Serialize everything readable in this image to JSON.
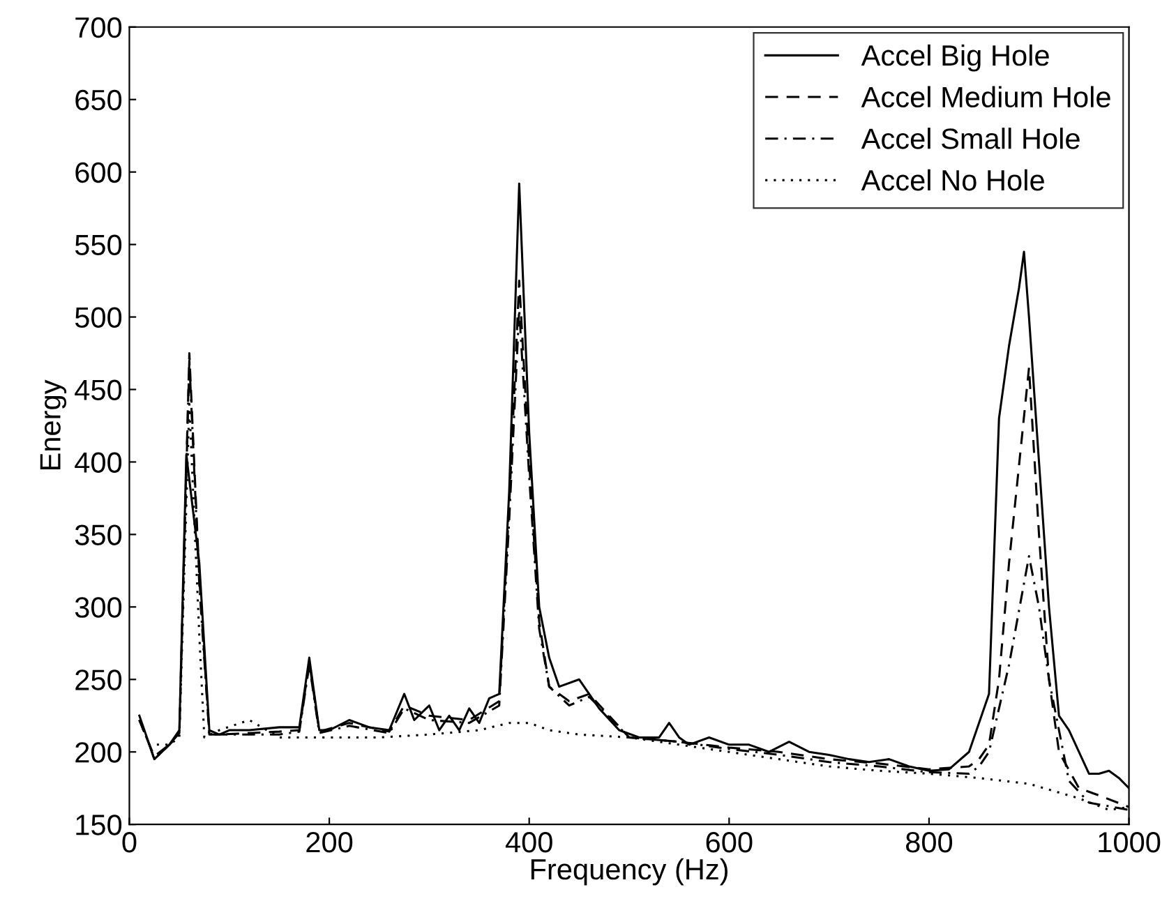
{
  "chart_data": {
    "type": "line",
    "xlabel": "Frequency (Hz)",
    "ylabel": "Energy",
    "xlim": [
      0,
      1000
    ],
    "ylim": [
      150,
      700
    ],
    "xticks": [
      0,
      200,
      400,
      600,
      800,
      1000
    ],
    "yticks": [
      150,
      200,
      250,
      300,
      350,
      400,
      450,
      500,
      550,
      600,
      650,
      700
    ],
    "grid": false,
    "legend": "top right",
    "marker": "none",
    "series": [
      {
        "name": "Accel Big Hole",
        "color": "#000000",
        "line_style": "solid",
        "x": [
          10,
          20,
          25,
          40,
          50,
          57,
          70,
          80,
          90,
          100,
          120,
          150,
          170,
          180,
          190,
          200,
          220,
          240,
          260,
          275,
          285,
          300,
          310,
          320,
          330,
          340,
          350,
          360,
          370,
          380,
          390,
          400,
          410,
          420,
          430,
          450,
          470,
          490,
          510,
          530,
          540,
          550,
          560,
          580,
          600,
          620,
          640,
          660,
          680,
          700,
          720,
          740,
          760,
          780,
          800,
          820,
          840,
          860,
          870,
          880,
          890,
          895,
          900,
          910,
          920,
          930,
          940,
          960,
          970,
          980,
          990,
          1000
        ],
        "values": [
          225,
          205,
          195,
          205,
          215,
          405,
          330,
          215,
          212,
          215,
          215,
          217,
          217,
          265,
          215,
          215,
          222,
          217,
          215,
          240,
          222,
          232,
          215,
          225,
          215,
          230,
          220,
          237,
          240,
          380,
          592,
          420,
          300,
          265,
          245,
          250,
          230,
          215,
          210,
          210,
          220,
          210,
          205,
          210,
          205,
          205,
          200,
          207,
          200,
          198,
          195,
          193,
          195,
          190,
          187,
          188,
          200,
          240,
          430,
          480,
          520,
          545,
          500,
          400,
          300,
          225,
          215,
          185,
          185,
          187,
          182,
          175
        ]
      },
      {
        "name": "Accel Medium Hole",
        "color": "#000000",
        "line_style": "dashed",
        "x": [
          10,
          20,
          25,
          40,
          50,
          60,
          70,
          80,
          90,
          120,
          150,
          170,
          180,
          190,
          220,
          260,
          275,
          300,
          340,
          370,
          380,
          390,
          400,
          410,
          420,
          440,
          460,
          500,
          550,
          600,
          650,
          700,
          750,
          800,
          840,
          850,
          860,
          870,
          880,
          900,
          910,
          920,
          930,
          950,
          970,
          1000
        ],
        "values": [
          222,
          205,
          197,
          205,
          213,
          475,
          320,
          212,
          212,
          213,
          214,
          215,
          262,
          214,
          220,
          214,
          232,
          225,
          222,
          235,
          370,
          525,
          400,
          290,
          245,
          235,
          240,
          210,
          207,
          203,
          200,
          195,
          192,
          188,
          190,
          195,
          205,
          250,
          330,
          465,
          350,
          250,
          200,
          175,
          170,
          162
        ]
      },
      {
        "name": "Accel Small Hole",
        "color": "#000000",
        "line_style": "dashdot",
        "x": [
          10,
          20,
          25,
          40,
          50,
          60,
          70,
          80,
          90,
          120,
          150,
          170,
          180,
          190,
          220,
          260,
          275,
          300,
          340,
          370,
          380,
          390,
          400,
          410,
          420,
          440,
          460,
          500,
          550,
          600,
          650,
          700,
          750,
          800,
          840,
          850,
          860,
          870,
          880,
          900,
          910,
          920,
          940,
          960,
          1000
        ],
        "values": [
          222,
          205,
          195,
          205,
          212,
          470,
          315,
          212,
          212,
          212,
          212,
          214,
          260,
          213,
          218,
          213,
          230,
          222,
          220,
          232,
          360,
          505,
          390,
          285,
          245,
          232,
          238,
          210,
          207,
          202,
          198,
          193,
          190,
          186,
          185,
          190,
          200,
          230,
          260,
          335,
          300,
          250,
          180,
          165,
          160
        ]
      },
      {
        "name": "Accel No Hole",
        "color": "#000000",
        "line_style": "dotted",
        "x": [
          10,
          20,
          40,
          50,
          60,
          70,
          75,
          90,
          120,
          150,
          200,
          250,
          300,
          350,
          380,
          400,
          420,
          450,
          500,
          550,
          600,
          650,
          700,
          750,
          800,
          850,
          900,
          950,
          980,
          1000
        ],
        "values": [
          222,
          205,
          205,
          210,
          440,
          280,
          210,
          215,
          222,
          210,
          210,
          210,
          212,
          215,
          220,
          220,
          215,
          212,
          210,
          205,
          200,
          195,
          190,
          187,
          185,
          182,
          178,
          168,
          160,
          162
        ]
      }
    ]
  }
}
